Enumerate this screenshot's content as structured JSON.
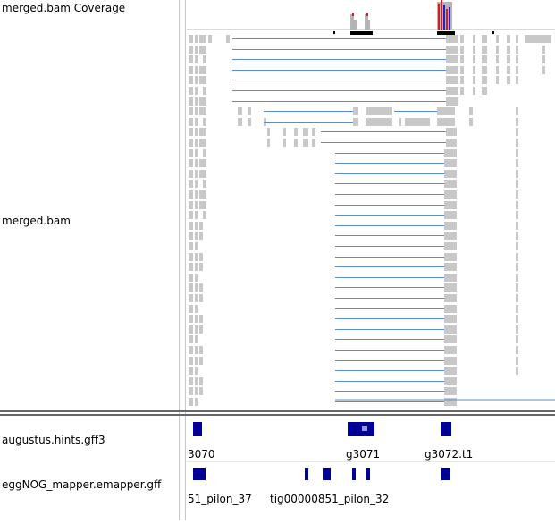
{
  "tracks": {
    "coverage_label": "merged.bam Coverage",
    "alignment_label": "merged.bam",
    "augustus_label": "augustus.hints.gff3",
    "eggnog_label": "eggNOG_mapper.emapper.gff"
  },
  "augustus_features": [
    "3070",
    "g3071",
    "g3072.t1"
  ],
  "eggnog_features": [
    "51_pilon_37",
    "tig00000851_pilon_32"
  ],
  "colors": {
    "coverage": "#b4b4b4",
    "read": "#c8c8c8",
    "junction": "#5a8ed0",
    "feature": "#000096",
    "mismatch_a": "#d02020",
    "mismatch_c": "#2020d0"
  }
}
